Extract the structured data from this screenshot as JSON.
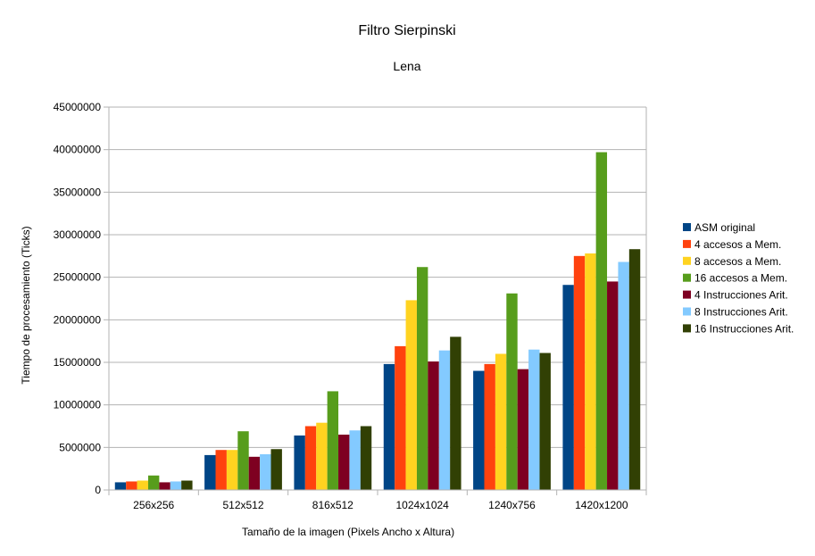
{
  "chart_data": {
    "type": "bar",
    "title": "Filtro Sierpinski",
    "subtitle": "Lena",
    "xlabel": "Tamaño de la imagen (Pixels Ancho x Altura)",
    "ylabel": "Tiempo de procesamiento (Ticks)",
    "ylim": [
      0,
      45000000
    ],
    "y_ticks": [
      0,
      5000000,
      10000000,
      15000000,
      20000000,
      25000000,
      30000000,
      35000000,
      40000000,
      45000000
    ],
    "grid": true,
    "legend_position": "right",
    "categories": [
      "256x256",
      "512x512",
      "816x512",
      "1024x1024",
      "1240x756",
      "1420x1200"
    ],
    "series": [
      {
        "name": "ASM original",
        "color": "#004586",
        "values": [
          900000,
          4100000,
          6400000,
          14800000,
          14000000,
          24100000
        ]
      },
      {
        "name": "4 accesos a Mem.",
        "color": "#ff420e",
        "values": [
          1000000,
          4700000,
          7500000,
          16900000,
          14800000,
          27500000
        ]
      },
      {
        "name": "8 accesos a Mem.",
        "color": "#ffd320",
        "values": [
          1100000,
          4700000,
          7900000,
          22300000,
          16000000,
          27800000
        ]
      },
      {
        "name": "16 accesos a Mem.",
        "color": "#579d1c",
        "values": [
          1700000,
          6900000,
          11600000,
          26200000,
          23100000,
          39700000
        ]
      },
      {
        "name": "4 Instrucciones Arit.",
        "color": "#7e0021",
        "values": [
          900000,
          3900000,
          6500000,
          15100000,
          14200000,
          24500000
        ]
      },
      {
        "name": "8 Instrucciones Arit.",
        "color": "#83caff",
        "values": [
          1000000,
          4200000,
          7000000,
          16400000,
          16500000,
          26800000
        ]
      },
      {
        "name": "16 Instrucciones Arit.",
        "color": "#314004",
        "values": [
          1100000,
          4800000,
          7500000,
          18000000,
          16100000,
          28300000
        ]
      }
    ]
  }
}
